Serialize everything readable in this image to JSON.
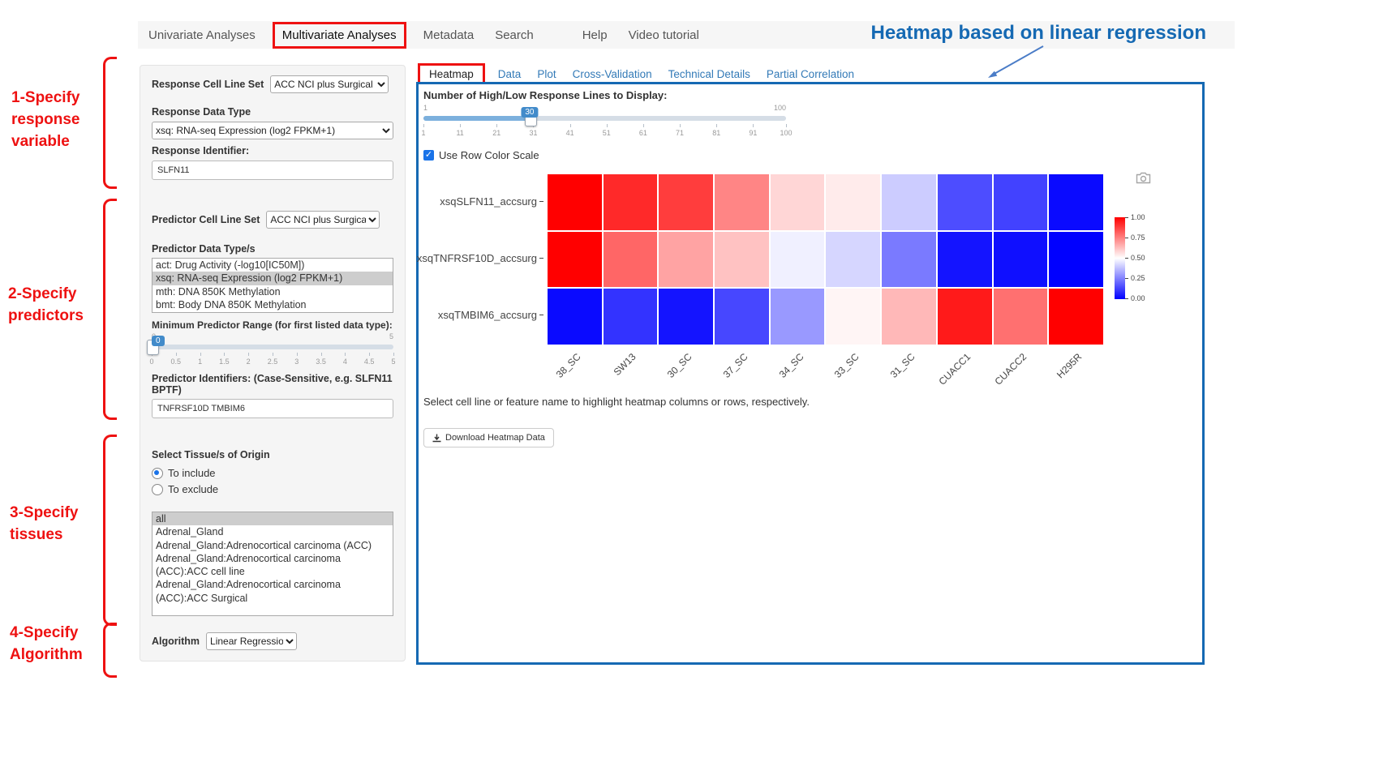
{
  "nav": {
    "items": [
      {
        "label": "Univariate Analyses"
      },
      {
        "label": "Multivariate Analyses",
        "boxed": true
      },
      {
        "label": "Metadata"
      },
      {
        "label": "Search"
      },
      {
        "label": "Help",
        "gap_before": true
      },
      {
        "label": "Video tutorial"
      }
    ]
  },
  "annotations": {
    "heading": "Heatmap based on linear regression",
    "steps": [
      "1-Specify\nresponse\nvariable",
      "2-Specify\npredictors",
      "3-Specify\ntissues",
      "4-Specify\nAlgorithm"
    ]
  },
  "form": {
    "response_cell_line_set": {
      "label": "Response Cell Line Set",
      "value": "ACC NCI plus Surgical"
    },
    "response_data_type": {
      "label": "Response Data Type",
      "value": "xsq: RNA-seq Expression (log2 FPKM+1)"
    },
    "response_identifier": {
      "label": "Response Identifier:",
      "value": "SLFN11"
    },
    "predictor_cell_line_set": {
      "label": "Predictor Cell Line Set",
      "value": "ACC NCI plus Surgical"
    },
    "predictor_data_types": {
      "label": "Predictor Data Type/s",
      "options": [
        {
          "label": "act: Drug Activity (-log10[IC50M])",
          "selected": false
        },
        {
          "label": "xsq: RNA-seq Expression (log2 FPKM+1)",
          "selected": true
        },
        {
          "label": "mth: DNA 850K Methylation",
          "selected": false
        },
        {
          "label": "bmt: Body DNA 850K Methylation",
          "selected": false
        }
      ]
    },
    "min_predictor_range": {
      "label": "Minimum Predictor Range (for first listed data type):",
      "min": "0",
      "max": "5",
      "value": "0",
      "ticks": [
        "0",
        "0.5",
        "1",
        "1.5",
        "2",
        "2.5",
        "3",
        "3.5",
        "4",
        "4.5",
        "5"
      ]
    },
    "predictor_identifiers": {
      "label": "Predictor Identifiers: (Case-Sensitive, e.g. SLFN11 BPTF)",
      "value": "TNFRSF10D TMBIM6"
    },
    "tissue": {
      "label": "Select Tissue/s of Origin",
      "radio_include": "To include",
      "radio_exclude": "To exclude",
      "include_selected": true,
      "options": [
        {
          "label": "all",
          "selected": true
        },
        {
          "label": "Adrenal_Gland",
          "selected": false
        },
        {
          "label": "Adrenal_Gland:Adrenocortical carcinoma (ACC)",
          "selected": false
        },
        {
          "label": "Adrenal_Gland:Adrenocortical carcinoma (ACC):ACC cell line",
          "selected": false
        },
        {
          "label": "Adrenal_Gland:Adrenocortical carcinoma (ACC):ACC Surgical",
          "selected": false
        }
      ]
    },
    "algorithm": {
      "label": "Algorithm",
      "value": "Linear Regression"
    }
  },
  "main": {
    "tabs": [
      {
        "label": "Heatmap",
        "active": true,
        "boxed": true
      },
      {
        "label": "Data"
      },
      {
        "label": "Plot"
      },
      {
        "label": "Cross-Validation"
      },
      {
        "label": "Technical Details"
      },
      {
        "label": "Partial Correlation"
      }
    ],
    "slider": {
      "label": "Number of High/Low Response Lines to Display:",
      "min": "1",
      "max": "100",
      "value": "30",
      "ticks": [
        "1",
        "11",
        "21",
        "31",
        "41",
        "51",
        "61",
        "71",
        "81",
        "91",
        "100"
      ]
    },
    "row_color_scale_label": "Use Row Color Scale",
    "row_color_scale_checked": true,
    "hint": "Select cell line or feature name to highlight heatmap columns or rows, respectively.",
    "download_button": "Download Heatmap Data"
  },
  "icons": {
    "checkmark": "✓"
  },
  "colors": {
    "accent_blue": "#1569b3",
    "annotation_red": "#ee1111",
    "link_blue": "#337ab7",
    "slider_blue": "#428bca"
  },
  "chart_data": {
    "type": "heatmap",
    "rows": [
      "xsqSLFN11_accsurg",
      "xsqTNFRSF10D_accsurg",
      "xsqTMBIM6_accsurg"
    ],
    "columns": [
      "38_SC",
      "SW13",
      "30_SC",
      "37_SC",
      "34_SC",
      "33_SC",
      "31_SC",
      "CUACC1",
      "CUACC2",
      "H295R"
    ],
    "values": [
      [
        1.0,
        0.92,
        0.88,
        0.74,
        0.58,
        0.54,
        0.4,
        0.15,
        0.13,
        0.02
      ],
      [
        1.0,
        0.8,
        0.68,
        0.62,
        0.47,
        0.42,
        0.24,
        0.04,
        0.03,
        0.0
      ],
      [
        0.02,
        0.1,
        0.04,
        0.14,
        0.3,
        0.52,
        0.64,
        0.95,
        0.78,
        1.0
      ]
    ],
    "value_range": [
      0,
      1
    ],
    "colorbar_ticks": [
      "1.00",
      "0.75",
      "0.50",
      "0.25",
      "0.00"
    ],
    "colorscale": {
      "high": "#ff0000",
      "mid": "#ffffff",
      "low": "#0000ff"
    },
    "legend_position": "right",
    "row_color_scale": true
  }
}
